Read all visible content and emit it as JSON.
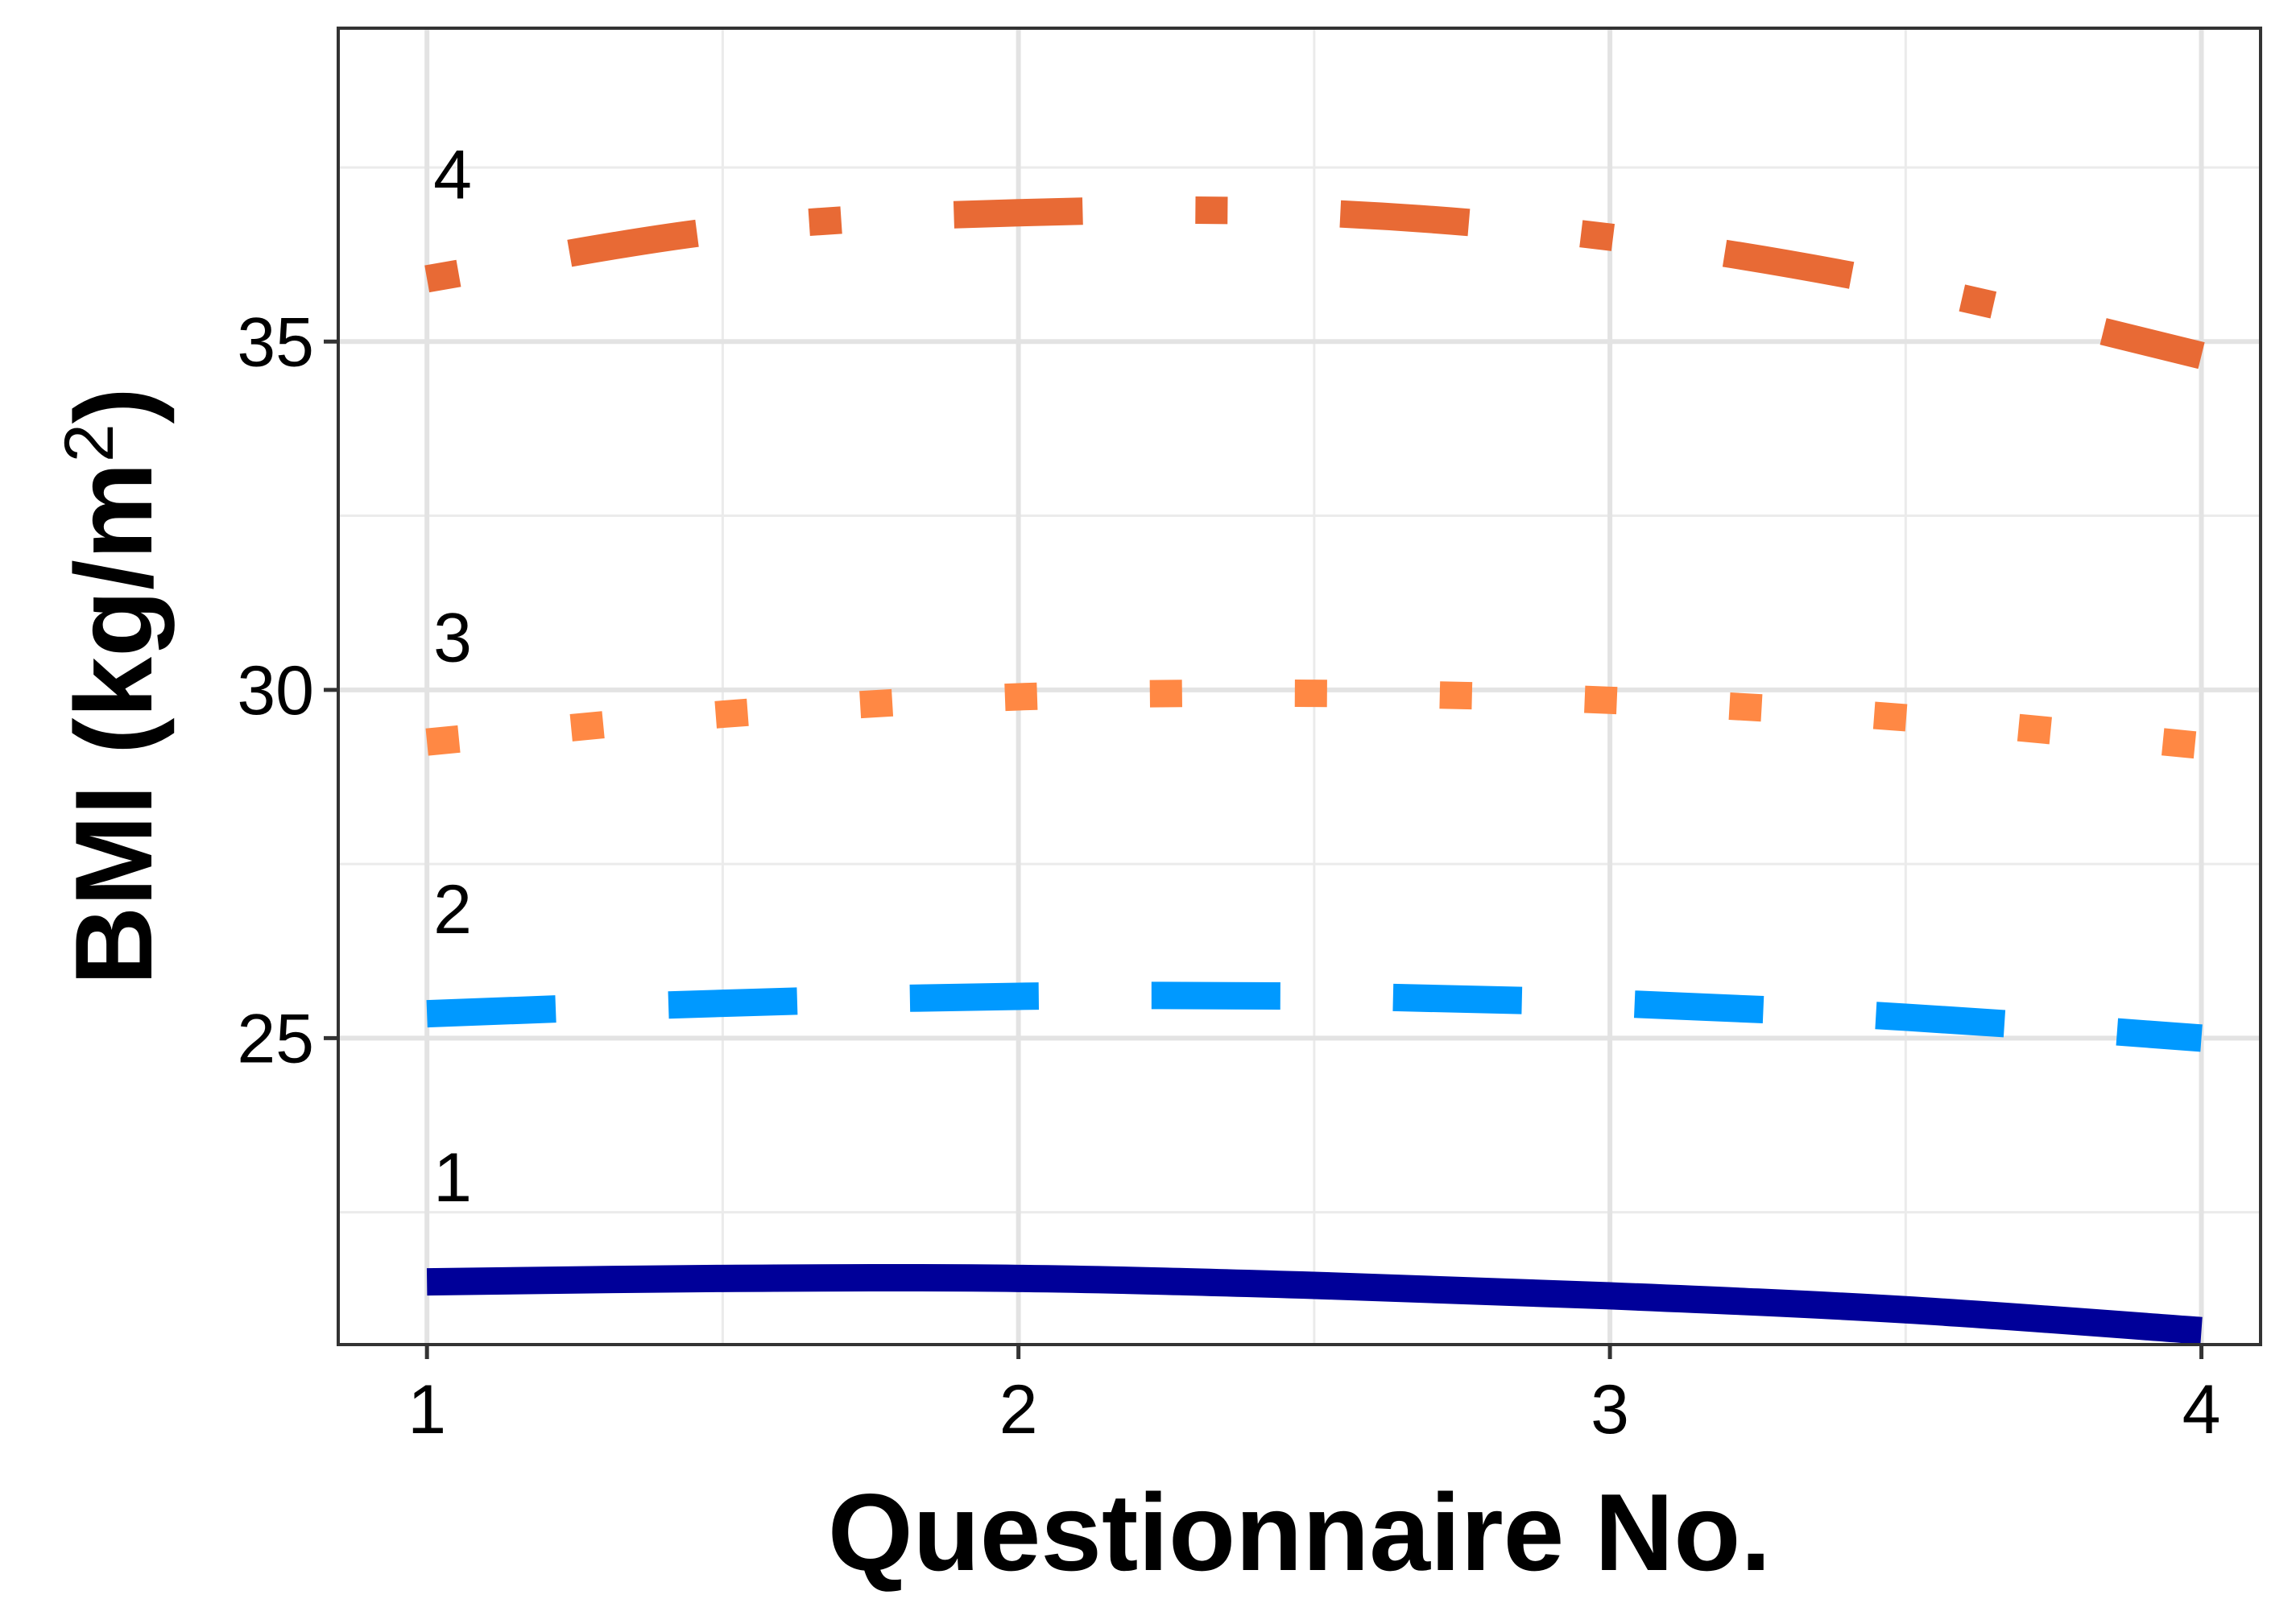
{
  "chart_data": {
    "type": "line",
    "title": "",
    "xlabel": "Questionnaire No.",
    "ylabel": {
      "main": "BMI (kg/m",
      "superscript": "2",
      "close": ")"
    },
    "xlim": [
      0.85,
      4.1
    ],
    "ylim": [
      20.6,
      39.5
    ],
    "x_ticks": [
      1,
      2,
      3,
      4
    ],
    "y_ticks": [
      25,
      30,
      35
    ],
    "grid": true,
    "legend": "none",
    "series": [
      {
        "name": "1",
        "color": "#000099",
        "dash": "solid",
        "x": [
          1,
          1.5,
          2,
          2.5,
          3,
          3.5,
          4
        ],
        "y": [
          21.5,
          21.55,
          21.55,
          21.45,
          21.3,
          21.1,
          20.8
        ]
      },
      {
        "name": "2",
        "color": "#0099ff",
        "dash": "dashed",
        "x": [
          1,
          1.5,
          2,
          2.5,
          3,
          3.5,
          4
        ],
        "y": [
          25.35,
          25.5,
          25.6,
          25.6,
          25.5,
          25.3,
          25.0
        ]
      },
      {
        "name": "3",
        "color": "#ff8844",
        "dash": "dotted",
        "x": [
          1,
          1.5,
          2,
          2.5,
          3,
          3.5,
          4
        ],
        "y": [
          29.25,
          29.65,
          29.9,
          29.95,
          29.85,
          29.6,
          29.2
        ]
      },
      {
        "name": "4",
        "color": "#e86a35",
        "dash": "dotdash",
        "x": [
          1,
          1.5,
          2,
          2.5,
          3,
          3.5,
          4
        ],
        "y": [
          35.9,
          36.6,
          36.85,
          36.85,
          36.5,
          35.8,
          34.8
        ]
      }
    ]
  }
}
